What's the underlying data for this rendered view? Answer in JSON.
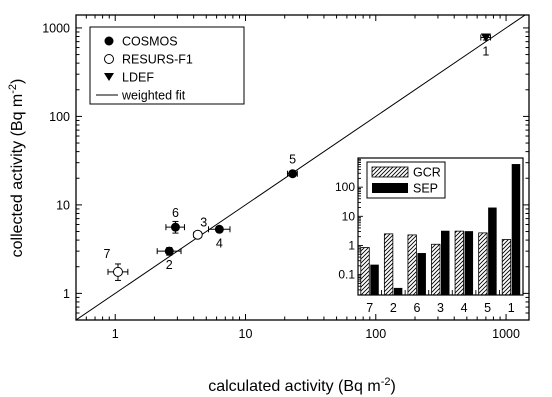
{
  "chart_data": [
    {
      "type": "scatter",
      "xlabel": "calculated activity (Bq m",
      "xlabel_sup": "-2",
      "xlabel_end": ")",
      "ylabel": "collected activity (Bq m",
      "ylabel_sup": "-2",
      "ylabel_end": ")",
      "xscale": "log",
      "yscale": "log",
      "xlim": [
        0.5,
        1500
      ],
      "ylim": [
        0.5,
        1400
      ],
      "x_ticks": [
        {
          "value": 1,
          "label": "1"
        },
        {
          "value": 10,
          "label": "10"
        },
        {
          "value": 100,
          "label": "100"
        },
        {
          "value": 1000,
          "label": "1000"
        }
      ],
      "y_ticks": [
        {
          "value": 1,
          "label": "1"
        },
        {
          "value": 10,
          "label": "10"
        },
        {
          "value": 100,
          "label": "100"
        },
        {
          "value": 1000,
          "label": "1000"
        }
      ],
      "legend_position": "top-left",
      "legend": [
        {
          "label": "COSMOS",
          "marker": "filled-circle"
        },
        {
          "label": "RESURS-F1",
          "marker": "open-circle"
        },
        {
          "label": "LDEF",
          "marker": "filled-triangle-down"
        },
        {
          "label": "weighted fit",
          "marker": "line"
        }
      ],
      "series": [
        {
          "name": "COSMOS",
          "marker": "filled-circle",
          "points": [
            {
              "label": "2",
              "x": 2.6,
              "y": 3.0,
              "xerr": [
                2.1,
                3.2
              ],
              "yerr": [
                2.7,
                3.3
              ],
              "label_pos": "below"
            },
            {
              "label": "6",
              "x": 2.9,
              "y": 5.6,
              "xerr": [
                2.45,
                3.4
              ],
              "yerr": [
                4.8,
                6.5
              ],
              "label_pos": "above"
            },
            {
              "label": "4",
              "x": 6.3,
              "y": 5.3,
              "xerr": [
                5.2,
                7.6
              ],
              "yerr": [
                4.9,
                5.7
              ],
              "label_pos": "below"
            },
            {
              "label": "5",
              "x": 23,
              "y": 22.5,
              "xerr": [
                21,
                25
              ],
              "yerr": [
                21.5,
                23.5
              ],
              "label_pos": "above"
            }
          ]
        },
        {
          "name": "RESURS-F1",
          "marker": "open-circle",
          "points": [
            {
              "label": "7",
              "x": 1.05,
              "y": 1.75,
              "xerr": [
                0.88,
                1.25
              ],
              "yerr": [
                1.4,
                2.15
              ],
              "label_pos": "above-left"
            },
            {
              "label": "3",
              "x": 4.3,
              "y": 4.6,
              "xerr": [
                4.0,
                4.6
              ],
              "yerr": [
                4.35,
                4.85
              ],
              "label_pos": "above-right"
            }
          ]
        },
        {
          "name": "LDEF",
          "marker": "filled-triangle-down",
          "points": [
            {
              "label": "1",
              "x": 700,
              "y": 780,
              "xerr": [
                640,
                760
              ],
              "yerr": [
                730,
                830
              ],
              "label_pos": "below"
            }
          ]
        }
      ],
      "fit_line": {
        "name": "weighted fit",
        "x": [
          0.5,
          1500
        ],
        "y": [
          0.5,
          1500
        ]
      }
    },
    {
      "type": "bar",
      "yscale": "log",
      "ylim": [
        0.02,
        1000
      ],
      "categories": [
        "7",
        "2",
        "6",
        "3",
        "4",
        "5",
        "1"
      ],
      "y_ticks": [
        {
          "value": 0.1,
          "label": "0.1"
        },
        {
          "value": 1,
          "label": "1"
        },
        {
          "value": 10,
          "label": "10"
        },
        {
          "value": 100,
          "label": "100"
        }
      ],
      "legend_position": "top-left",
      "series": [
        {
          "name": "GCR",
          "fill": "hatched",
          "values": [
            0.85,
            2.5,
            2.3,
            1.1,
            3.1,
            2.7,
            1.6
          ]
        },
        {
          "name": "SEP",
          "fill": "solid",
          "values": [
            0.22,
            0.035,
            0.55,
            3.2,
            3.1,
            20,
            620
          ]
        }
      ]
    }
  ]
}
